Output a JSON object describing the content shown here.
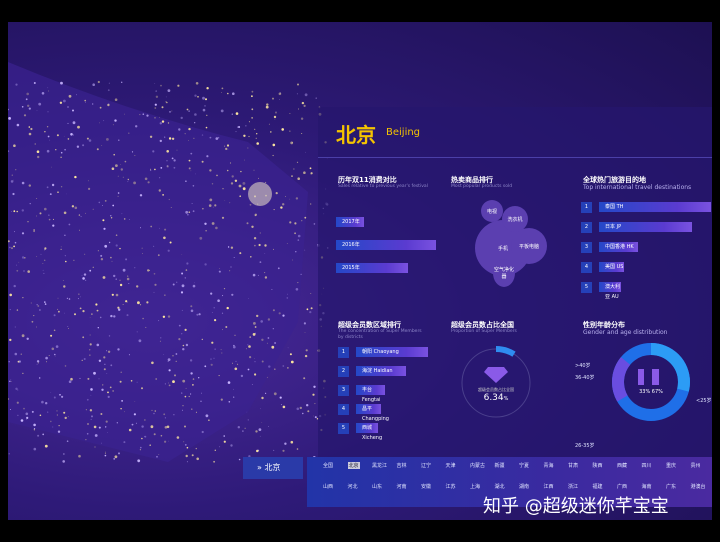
{
  "city": {
    "name_cn": "北京",
    "name_en": "Beijing"
  },
  "yoy": {
    "title": "历年双11消费对比",
    "subtitle": "Sales relative to previous year's festival",
    "bars": [
      {
        "label": "2017年",
        "value": 0.28
      },
      {
        "label": "2016年",
        "value": 1.0
      },
      {
        "label": "2015年",
        "value": 0.72
      }
    ]
  },
  "products": {
    "title": "热卖商品排行",
    "subtitle": "Most popular products sold",
    "items": [
      "手机",
      "电视",
      "洗衣机",
      "平板电脑",
      "空气净化器"
    ]
  },
  "travel": {
    "title": "全球热门旅游目的地",
    "subtitle": "Top international travel destinations",
    "items": [
      {
        "rank": "1",
        "label": "泰国 TH",
        "value": 1.0
      },
      {
        "rank": "2",
        "label": "日本 JP",
        "value": 0.83
      },
      {
        "rank": "3",
        "label": "中国香港 HK",
        "value": 0.35
      },
      {
        "rank": "4",
        "label": "美国 US",
        "value": 0.22
      },
      {
        "rank": "5",
        "label": "澳大利亚 AU",
        "value": 0.2
      }
    ]
  },
  "districts": {
    "title": "超级会员数区域排行",
    "subtitle": "The concentration of Super Members by districts",
    "items": [
      {
        "rank": "1",
        "label": "朝阳 Chaoyang",
        "value": 1.0
      },
      {
        "rank": "2",
        "label": "海淀 Haidian",
        "value": 0.7
      },
      {
        "rank": "3",
        "label": "丰台 Fengtai",
        "value": 0.4
      },
      {
        "rank": "4",
        "label": "昌平 Changping",
        "value": 0.35
      },
      {
        "rank": "5",
        "label": "西城 Xicheng",
        "value": 0.3
      }
    ]
  },
  "proportion": {
    "title": "超级会员数占比全国",
    "subtitle": "Proportion of Super Members",
    "caption": "超级会员数占比全国",
    "value": "6.34",
    "unit": "%",
    "icon": "diamond-icon"
  },
  "gender": {
    "title": "性别年龄分布",
    "subtitle": "Gender and age distribution",
    "ratio": "33% 67%",
    "ages": [
      ">40岁",
      "36-40岁",
      "<25岁",
      "26-35岁"
    ],
    "icons": [
      "male-icon",
      "female-icon"
    ]
  },
  "footer": {
    "current": "北京",
    "row1": [
      "全国",
      "北京",
      "黑龙江",
      "吉林",
      "辽宁",
      "天津",
      "内蒙古",
      "新疆",
      "宁夏",
      "青海",
      "甘肃",
      "陕西",
      "西藏",
      "四川",
      "重庆",
      "贵州"
    ],
    "row2": [
      "山西",
      "河北",
      "山东",
      "河南",
      "安徽",
      "江苏",
      "上海",
      "湖北",
      "湖南",
      "江西",
      "浙江",
      "福建",
      "广西",
      "海南",
      "广东",
      "港澳台"
    ]
  },
  "watermark": "知乎 @超级迷你芊宝宝",
  "colors": {
    "accent": "#f5c400",
    "bar": "#2448c8",
    "panel": "#26166e"
  }
}
